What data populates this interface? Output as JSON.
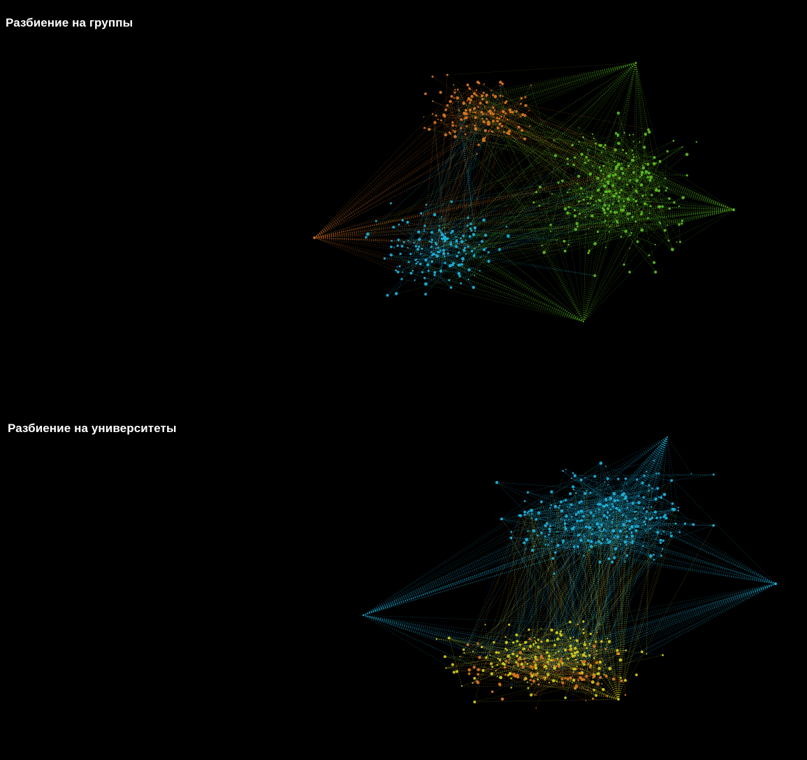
{
  "colors": {
    "background": "#000000",
    "title": "#ffffff",
    "cluster_orange": "#e07a22",
    "cluster_green": "#5fbf22",
    "cluster_cyan": "#1fb5e0",
    "cluster_yellow": "#d8d21e"
  },
  "panels": [
    {
      "title": "Разбиение на группы",
      "graph_type": "network",
      "clusters": [
        {
          "color": "cluster_orange",
          "region": "upper-left"
        },
        {
          "color": "cluster_green",
          "region": "right"
        },
        {
          "color": "cluster_cyan",
          "region": "lower-left"
        }
      ]
    },
    {
      "title": "Разбиение на университеты",
      "graph_type": "network",
      "clusters": [
        {
          "color": "cluster_cyan",
          "region": "upper"
        },
        {
          "color": "cluster_yellow",
          "region": "lower"
        },
        {
          "color": "cluster_orange",
          "region": "lower-center"
        }
      ]
    }
  ]
}
